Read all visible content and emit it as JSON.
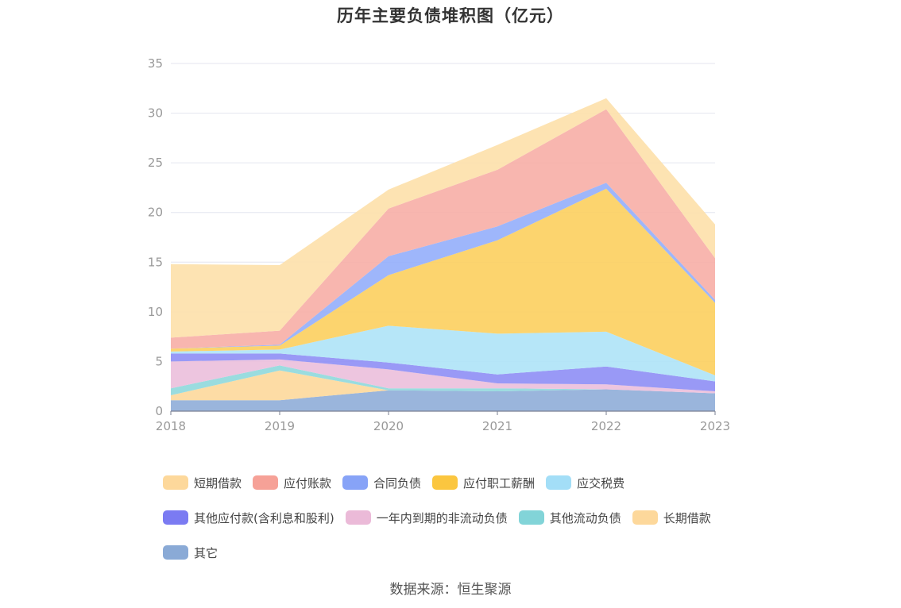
{
  "title": "历年主要负债堆积图（亿元）",
  "source": "数据来源：恒生聚源",
  "chart_data": {
    "type": "area",
    "stacked": true,
    "title": "历年主要负债堆积图（亿元）",
    "categories": [
      "2018",
      "2019",
      "2020",
      "2021",
      "2022",
      "2023"
    ],
    "ylim": [
      0,
      35
    ],
    "yticks": [
      "0",
      "5",
      "10",
      "15",
      "20",
      "25",
      "30",
      "35"
    ],
    "grid": true,
    "legend_position": "bottom",
    "series": [
      {
        "name": "其它",
        "color": "#8fadd8",
        "values": [
          1.1,
          1.1,
          2.1,
          2.0,
          2.2,
          1.8
        ]
      },
      {
        "name": "长期借款",
        "color": "#fdd89b",
        "values": [
          0.5,
          3.0,
          0.0,
          0.0,
          0.0,
          0.0
        ]
      },
      {
        "name": "其他流动负债",
        "color": "#8fd8dc",
        "values": [
          0.7,
          0.5,
          0.2,
          0.3,
          0.0,
          0.0
        ]
      },
      {
        "name": "一年内到期的非流动负债",
        "color": "#ebbfdc",
        "values": [
          2.7,
          0.6,
          1.9,
          0.5,
          0.5,
          0.2
        ]
      },
      {
        "name": "其他应付款(含利息和股利)",
        "color": "#8e8ef5",
        "values": [
          0.8,
          0.6,
          0.7,
          0.9,
          1.8,
          1.0
        ]
      },
      {
        "name": "应交税费",
        "color": "#aee3f7",
        "values": [
          0.2,
          0.4,
          3.7,
          4.1,
          3.5,
          0.6
        ]
      },
      {
        "name": "应付职工薪酬",
        "color": "#fccf5e",
        "values": [
          0.3,
          0.4,
          5.1,
          9.4,
          14.4,
          7.3
        ]
      },
      {
        "name": "合同负债",
        "color": "#94aefb",
        "values": [
          0.0,
          0.1,
          1.9,
          1.4,
          0.6,
          0.3
        ]
      },
      {
        "name": "应付账款",
        "color": "#f7aea6",
        "values": [
          1.1,
          1.4,
          4.8,
          5.7,
          7.4,
          4.2
        ]
      },
      {
        "name": "短期借款",
        "color": "#fde0aa",
        "values": [
          7.4,
          6.6,
          1.9,
          2.5,
          1.1,
          3.4
        ]
      }
    ]
  },
  "legend": [
    {
      "label": "短期借款",
      "color": "#fdd89b"
    },
    {
      "label": "应付账款",
      "color": "#f6a197"
    },
    {
      "label": "合同负债",
      "color": "#87a3f7"
    },
    {
      "label": "应付职工薪酬",
      "color": "#fbc63f"
    },
    {
      "label": "应交税费",
      "color": "#a3def7"
    },
    {
      "label": "其他应付款(含利息和股利)",
      "color": "#7b7bf2"
    },
    {
      "label": "一年内到期的非流动负债",
      "color": "#ebbad8"
    },
    {
      "label": "其他流动负债",
      "color": "#82d4d8"
    },
    {
      "label": "长期借款",
      "color": "#fdd89b"
    },
    {
      "label": "其它",
      "color": "#8aaad6"
    }
  ]
}
